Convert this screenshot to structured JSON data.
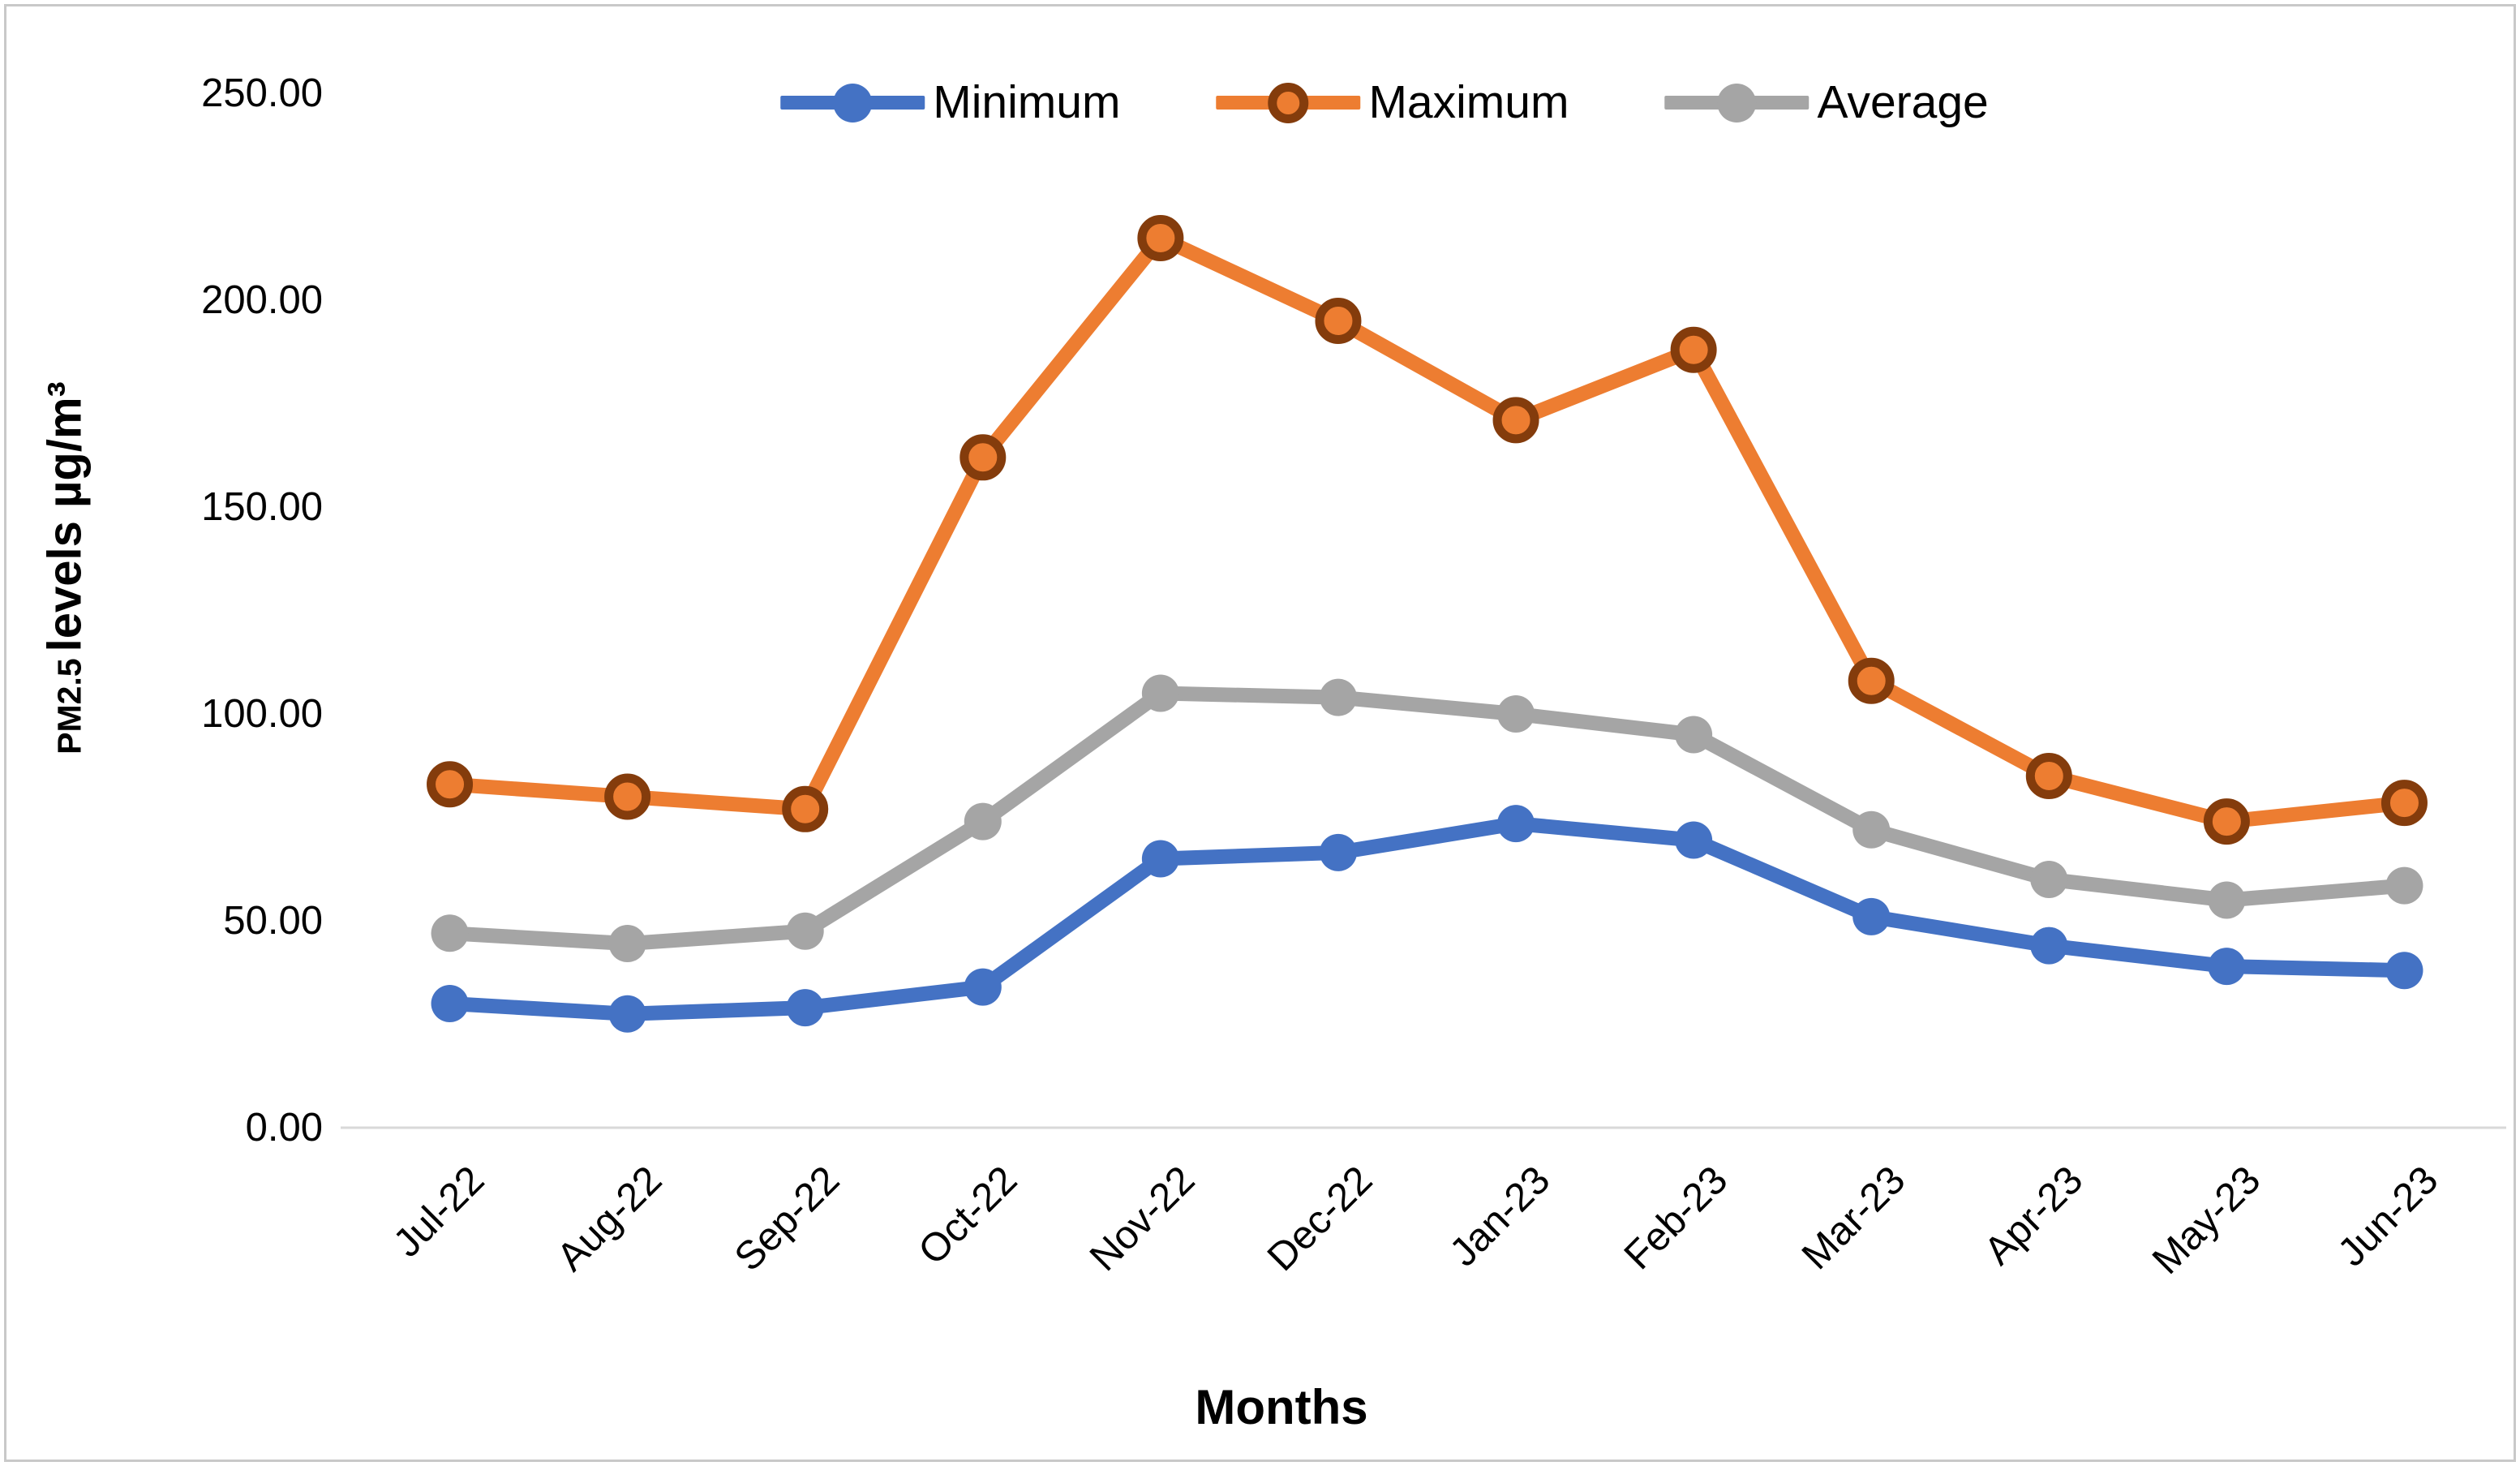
{
  "chart_data": {
    "type": "line",
    "title": "",
    "categories": [
      "Jul-22",
      "Aug-22",
      "Sep-22",
      "Oct-22",
      "Nov-22",
      "Dec-22",
      "Jan-23",
      "Feb-23",
      "Mar-23",
      "Apr-23",
      "May-23",
      "Jun-23"
    ],
    "series": [
      {
        "name": "Minimum",
        "color": "#4472C4",
        "marker": "circle",
        "values": [
          30,
          27.5,
          29,
          34,
          65,
          66.5,
          73.5,
          69.5,
          51,
          44,
          39,
          38
        ]
      },
      {
        "name": "Maximum",
        "color": "#ED7D31",
        "marker": "ring",
        "marker_ring_color": "#843C0C",
        "values": [
          83,
          80,
          77,
          162,
          215,
          195,
          171,
          188,
          108,
          85,
          74,
          78.5
        ]
      },
      {
        "name": "Average",
        "color": "#A5A5A5",
        "marker": "circle",
        "values": [
          47,
          44.5,
          47.5,
          74,
          105,
          104,
          100,
          95,
          72,
          60,
          55,
          58.5
        ]
      }
    ],
    "xlabel": "Months",
    "ylabel": "PM2.5 levels  µg/m³",
    "ylabel_prefix": "PM2.5",
    "ylabel_main": "levels  µg/m³",
    "y_ticks": [
      {
        "value": 0,
        "label": "0.00"
      },
      {
        "value": 50,
        "label": "50.00"
      },
      {
        "value": 100,
        "label": "100.00"
      },
      {
        "value": 150,
        "label": "150.00"
      },
      {
        "value": 200,
        "label": "200.00"
      },
      {
        "value": 250,
        "label": "250.00"
      }
    ],
    "ylim": [
      0,
      250
    ],
    "grid": "baseline-only",
    "legend_position": "top-center"
  },
  "style_colors": {
    "baseline_gridline": "#D9D9D9",
    "chart_border": "#C9C9C9",
    "text": "#000000"
  }
}
